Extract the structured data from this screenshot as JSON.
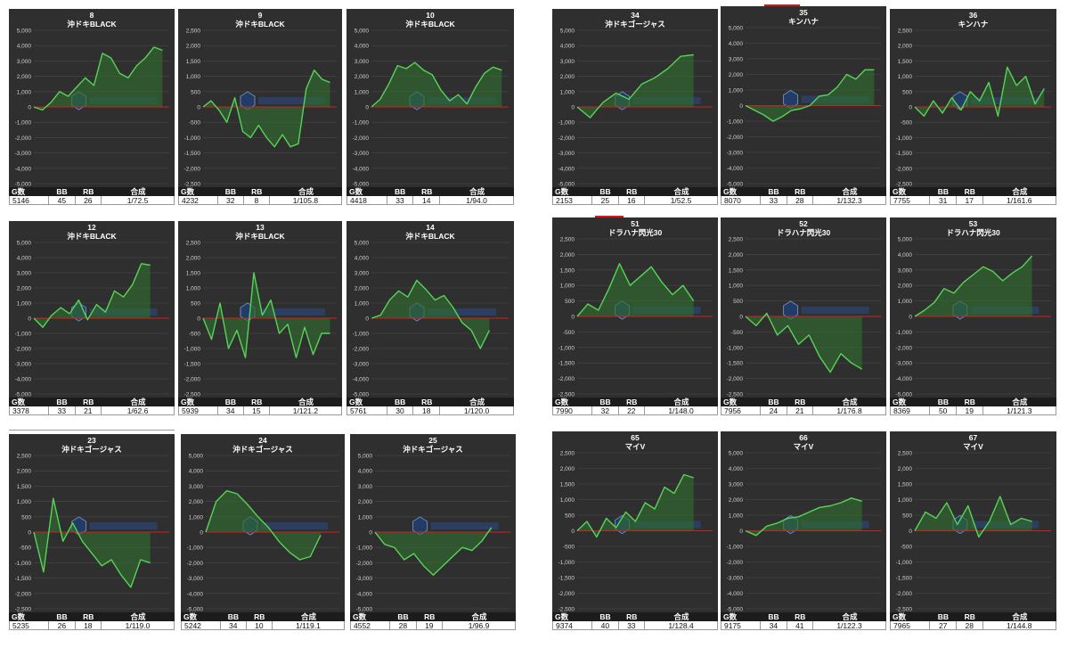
{
  "labels": {
    "games": "G数",
    "bb": "BB",
    "rb": "RB",
    "combined": "合成",
    "zero_line_color": "#cc2222",
    "line_color": "#58d358",
    "fill_color": "#2f6b2f"
  },
  "chart_data": [
    {
      "type": "line",
      "machine_no": "8",
      "title": "沖ドキBLACK",
      "ylim": [
        -5000,
        5000
      ],
      "yticks": [
        "5,000",
        "4,000",
        "3,000",
        "2,000",
        "1,000",
        "0",
        "-1,000",
        "-2,000",
        "-3,000",
        "-4,000",
        "-5,000"
      ],
      "y": [
        0,
        -200,
        300,
        1000,
        700,
        1300,
        1900,
        1400,
        3500,
        3200,
        2200,
        1900,
        2700,
        3200,
        3900,
        3700
      ],
      "stats": {
        "games": "5146",
        "bb": "45",
        "rb": "26",
        "combined": "1/72.5"
      }
    },
    {
      "type": "line",
      "machine_no": "9",
      "title": "沖ドキBLACK",
      "ylim": [
        -2500,
        2500
      ],
      "yticks": [
        "2,500",
        "2,000",
        "1,500",
        "1,000",
        "500",
        "0",
        "-500",
        "-1,000",
        "-1,500",
        "-2,000",
        "-2,500"
      ],
      "y": [
        0,
        200,
        -100,
        -500,
        300,
        -800,
        -1000,
        -600,
        -1000,
        -1300,
        -900,
        -1300,
        -1200,
        600,
        1200,
        900,
        800
      ],
      "stats": {
        "games": "4232",
        "bb": "32",
        "rb": "8",
        "combined": "1/105.8"
      }
    },
    {
      "type": "line",
      "machine_no": "10",
      "title": "沖ドキBLACK",
      "ylim": [
        -5000,
        5000
      ],
      "yticks": [
        "5,000",
        "4,000",
        "3,000",
        "2,000",
        "1,000",
        "0",
        "-1,000",
        "-2,000",
        "-3,000",
        "-4,000",
        "-5,000"
      ],
      "y": [
        0,
        500,
        1500,
        2700,
        2500,
        2900,
        2400,
        2100,
        1100,
        400,
        800,
        200,
        1300,
        2200,
        2600,
        2400
      ],
      "stats": {
        "games": "4418",
        "bb": "33",
        "rb": "14",
        "combined": "1/94.0"
      }
    },
    {
      "type": "line",
      "machine_no": "12",
      "title": "沖ドキBLACK",
      "ylim": [
        -5000,
        5000
      ],
      "yticks": [
        "5,000",
        "4,000",
        "3,000",
        "2,000",
        "1,000",
        "0",
        "-1,000",
        "-2,000",
        "-3,000",
        "-4,000",
        "-5,000"
      ],
      "y": [
        0,
        -600,
        200,
        700,
        300,
        1200,
        -100,
        900,
        400,
        1800,
        1400,
        2200,
        3600,
        3500
      ],
      "stats": {
        "games": "3378",
        "bb": "33",
        "rb": "21",
        "combined": "1/62.6"
      }
    },
    {
      "type": "line",
      "machine_no": "13",
      "title": "沖ドキBLACK",
      "ylim": [
        -2500,
        2500
      ],
      "yticks": [
        "2,500",
        "2,000",
        "1,500",
        "1,000",
        "500",
        "0",
        "-500",
        "-1,000",
        "-1,500",
        "-2,000",
        "-2,500"
      ],
      "y": [
        0,
        -700,
        500,
        -1000,
        -400,
        -1300,
        1500,
        100,
        600,
        -500,
        -200,
        -1300,
        -300,
        -1200,
        -500,
        -500
      ],
      "stats": {
        "games": "5939",
        "bb": "34",
        "rb": "15",
        "combined": "1/121.2"
      }
    },
    {
      "type": "line",
      "machine_no": "14",
      "title": "沖ドキBLACK",
      "ylim": [
        -5000,
        5000
      ],
      "yticks": [
        "5,000",
        "4,000",
        "3,000",
        "2,000",
        "1,000",
        "0",
        "-1,000",
        "-2,000",
        "-3,000",
        "-4,000",
        "-5,000"
      ],
      "y": [
        0,
        200,
        1200,
        1800,
        1400,
        2500,
        1900,
        1200,
        1500,
        700,
        -300,
        -800,
        -2000,
        -800
      ],
      "stats": {
        "games": "5761",
        "bb": "30",
        "rb": "18",
        "combined": "1/120.0"
      }
    },
    {
      "type": "line",
      "machine_no": "23",
      "title": "沖ドキゴージャス",
      "ylim": [
        -2500,
        2500
      ],
      "yticks": [
        "2,500",
        "2,000",
        "1,500",
        "1,000",
        "500",
        "0",
        "-500",
        "-1,000",
        "-1,500",
        "-2,000",
        "-2,500"
      ],
      "y": [
        0,
        -1300,
        1100,
        -300,
        300,
        -300,
        -700,
        -1100,
        -900,
        -1400,
        -1800,
        -900,
        -1000
      ],
      "stats": {
        "games": "5235",
        "bb": "26",
        "rb": "18",
        "combined": "1/119.0"
      }
    },
    {
      "type": "line",
      "machine_no": "24",
      "title": "沖ドキゴージャス",
      "ylim": [
        -5000,
        5000
      ],
      "yticks": [
        "5,000",
        "4,000",
        "3,000",
        "2,000",
        "1,000",
        "0",
        "-1,000",
        "-2,000",
        "-3,000",
        "-4,000",
        "-5,000"
      ],
      "y": [
        0,
        2000,
        2700,
        2500,
        1800,
        1000,
        300,
        -600,
        -1300,
        -1800,
        -1600,
        -200
      ],
      "stats": {
        "games": "5242",
        "bb": "34",
        "rb": "10",
        "combined": "1/119.1"
      }
    },
    {
      "type": "line",
      "machine_no": "25",
      "title": "沖ドキゴージャス",
      "ylim": [
        -5000,
        5000
      ],
      "yticks": [
        "5,000",
        "4,000",
        "3,000",
        "2,000",
        "1,000",
        "0",
        "-1,000",
        "-2,000",
        "-3,000",
        "-4,000",
        "-5,000"
      ],
      "y": [
        0,
        -800,
        -1000,
        -1800,
        -1400,
        -2200,
        -2800,
        -2200,
        -1600,
        -1000,
        -1200,
        -600,
        300
      ],
      "stats": {
        "games": "4552",
        "bb": "28",
        "rb": "19",
        "combined": "1/96.9"
      }
    },
    {
      "type": "line",
      "machine_no": "34",
      "title": "沖ドキゴージャス",
      "ylim": [
        -5000,
        5000
      ],
      "yticks": [
        "5,000",
        "4,000",
        "3,000",
        "2,000",
        "1,000",
        "0",
        "-1,000",
        "-2,000",
        "-3,000",
        "-4,000",
        "-5,000"
      ],
      "y": [
        0,
        -700,
        300,
        900,
        500,
        1500,
        1900,
        2500,
        3300,
        3400
      ],
      "stats": {
        "games": "2153",
        "bb": "25",
        "rb": "16",
        "combined": "1/52.5"
      }
    },
    {
      "type": "line",
      "machine_no": "35",
      "title": "キンハナ",
      "ylim": [
        -5000,
        5000
      ],
      "yticks": [
        "5,000",
        "4,000",
        "3,000",
        "2,000",
        "1,000",
        "0",
        "-1,000",
        "-2,000",
        "-3,000",
        "-4,000",
        "-5,000"
      ],
      "y": [
        0,
        -300,
        -600,
        -1000,
        -700,
        -300,
        -200,
        0,
        600,
        700,
        1200,
        2000,
        1700,
        2300,
        2300
      ],
      "stats": {
        "games": "8070",
        "bb": "33",
        "rb": "28",
        "combined": "1/132.3"
      }
    },
    {
      "type": "line",
      "machine_no": "36",
      "title": "キンハナ",
      "ylim": [
        -2500,
        2500
      ],
      "yticks": [
        "2,500",
        "2,000",
        "1,500",
        "1,000",
        "500",
        "0",
        "-500",
        "-1,000",
        "-1,500",
        "-2,000",
        "-2,500"
      ],
      "y": [
        0,
        -300,
        200,
        -200,
        300,
        -100,
        500,
        200,
        800,
        -300,
        1300,
        700,
        1000,
        100,
        600
      ],
      "stats": {
        "games": "7755",
        "bb": "31",
        "rb": "17",
        "combined": "1/161.6"
      }
    },
    {
      "type": "line",
      "machine_no": "51",
      "title": "ドラハナ閃光30",
      "ylim": [
        -2500,
        2500
      ],
      "yticks": [
        "2,500",
        "2,000",
        "1,500",
        "1,000",
        "500",
        "0",
        "-500",
        "-1,000",
        "-1,500",
        "-2,000",
        "-2,500"
      ],
      "y": [
        0,
        400,
        200,
        900,
        1700,
        1000,
        1300,
        1600,
        1100,
        700,
        1000,
        500
      ],
      "stats": {
        "games": "7990",
        "bb": "32",
        "rb": "22",
        "combined": "1/148.0"
      }
    },
    {
      "type": "line",
      "machine_no": "52",
      "title": "ドラハナ閃光30",
      "ylim": [
        -2500,
        2500
      ],
      "yticks": [
        "2,500",
        "2,000",
        "1,500",
        "1,000",
        "500",
        "0",
        "-500",
        "-1,000",
        "-1,500",
        "-2,000",
        "-2,500"
      ],
      "y": [
        0,
        -300,
        100,
        -600,
        -300,
        -900,
        -600,
        -1300,
        -1800,
        -1200,
        -1500,
        -1700
      ],
      "stats": {
        "games": "7956",
        "bb": "24",
        "rb": "21",
        "combined": "1/176.8"
      }
    },
    {
      "type": "line",
      "machine_no": "53",
      "title": "ドラハナ閃光30",
      "ylim": [
        -5000,
        5000
      ],
      "yticks": [
        "5,000",
        "4,000",
        "3,000",
        "2,000",
        "1,000",
        "0",
        "-1,000",
        "-2,000",
        "-3,000",
        "-4,000",
        "-5,000"
      ],
      "y": [
        0,
        400,
        900,
        1800,
        1500,
        2200,
        2700,
        3200,
        2900,
        2300,
        2800,
        3200,
        3900
      ],
      "stats": {
        "games": "8369",
        "bb": "50",
        "rb": "19",
        "combined": "1/121.3"
      }
    },
    {
      "type": "line",
      "machine_no": "65",
      "title": "マイV",
      "ylim": [
        -2500,
        2500
      ],
      "yticks": [
        "2,500",
        "2,000",
        "1,500",
        "1,000",
        "500",
        "0",
        "-500",
        "-1,000",
        "-1,500",
        "-2,000",
        "-2,500"
      ],
      "y": [
        0,
        300,
        -200,
        400,
        100,
        600,
        300,
        900,
        700,
        1400,
        1200,
        1800,
        1700
      ],
      "stats": {
        "games": "9374",
        "bb": "40",
        "rb": "33",
        "combined": "1/128.4"
      }
    },
    {
      "type": "line",
      "machine_no": "66",
      "title": "マイV",
      "ylim": [
        -5000,
        5000
      ],
      "yticks": [
        "5,000",
        "4,000",
        "3,000",
        "2,000",
        "1,000",
        "0",
        "-1,000",
        "-2,000",
        "-3,000",
        "-4,000",
        "-5,000"
      ],
      "y": [
        0,
        -300,
        300,
        500,
        800,
        900,
        1200,
        1500,
        1600,
        1800,
        2100,
        1900
      ],
      "stats": {
        "games": "9175",
        "bb": "34",
        "rb": "41",
        "combined": "1/122.3"
      }
    },
    {
      "type": "line",
      "machine_no": "67",
      "title": "マイV",
      "ylim": [
        -2500,
        2500
      ],
      "yticks": [
        "2,500",
        "2,000",
        "1,500",
        "1,000",
        "500",
        "0",
        "-500",
        "-1,000",
        "-1,500",
        "-2,000",
        "-2,500"
      ],
      "y": [
        0,
        600,
        400,
        900,
        200,
        800,
        -200,
        300,
        1100,
        200,
        400,
        300
      ],
      "stats": {
        "games": "7965",
        "bb": "27",
        "rb": "28",
        "combined": "1/144.8"
      }
    }
  ]
}
